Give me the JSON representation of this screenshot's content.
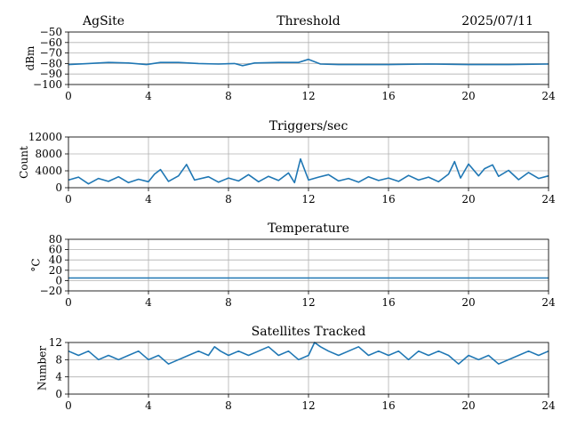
{
  "header": {
    "site": "AgSite",
    "date": "2025/07/11"
  },
  "colors": {
    "series": "#1f77b4",
    "grid": "#b0b0b0"
  },
  "chart_data": [
    {
      "type": "line",
      "title": "Threshold",
      "ylabel": "dBm",
      "xlabel": "",
      "xlim": [
        0,
        24
      ],
      "ylim": [
        -100,
        -50
      ],
      "xticks": [
        0,
        4,
        8,
        12,
        16,
        20,
        24
      ],
      "yticks": [
        -100,
        -90,
        -80,
        -70,
        -60,
        -50
      ],
      "ytick_labels": [
        "−100",
        "−90",
        "−80",
        "−70",
        "−60",
        "−50"
      ],
      "grid": true,
      "x": [
        0,
        1,
        2,
        3,
        3.9,
        4.6,
        5.5,
        6.5,
        7.5,
        8.3,
        8.7,
        9.3,
        10.5,
        11.5,
        12.0,
        12.6,
        13.5,
        16,
        18,
        20,
        22,
        24
      ],
      "y": [
        -81,
        -80,
        -79,
        -79.5,
        -81,
        -79,
        -79,
        -80,
        -80.5,
        -80,
        -82,
        -79.5,
        -79,
        -79,
        -76,
        -80.5,
        -81,
        -81,
        -80.5,
        -81,
        -81,
        -80.5
      ]
    },
    {
      "type": "line",
      "title": "Triggers/sec",
      "ylabel": "Count",
      "xlabel": "",
      "xlim": [
        0,
        24
      ],
      "ylim": [
        0,
        12000
      ],
      "xticks": [
        0,
        4,
        8,
        12,
        16,
        20,
        24
      ],
      "yticks": [
        0,
        4000,
        8000,
        12000
      ],
      "ytick_labels": [
        "0",
        "4000",
        "8000",
        "12000"
      ],
      "grid": true,
      "x": [
        0,
        0.5,
        1,
        1.5,
        2,
        2.5,
        3,
        3.5,
        4,
        4.3,
        4.6,
        5,
        5.5,
        5.9,
        6.3,
        7,
        7.5,
        8,
        8.5,
        9,
        9.5,
        10,
        10.5,
        11,
        11.3,
        11.6,
        12,
        12.5,
        13,
        13.5,
        14,
        14.5,
        15,
        15.5,
        16,
        16.5,
        17,
        17.5,
        18,
        18.5,
        19,
        19.3,
        19.6,
        20,
        20.5,
        20.8,
        21.2,
        21.5,
        22,
        22.5,
        23,
        23.5,
        24
      ],
      "y": [
        1800,
        2500,
        900,
        2200,
        1500,
        2600,
        1200,
        2000,
        1400,
        3200,
        4300,
        1500,
        2800,
        5500,
        1800,
        2600,
        1300,
        2300,
        1600,
        3100,
        1400,
        2700,
        1700,
        3500,
        1200,
        6800,
        1800,
        2500,
        3100,
        1600,
        2200,
        1300,
        2600,
        1700,
        2300,
        1500,
        2900,
        1800,
        2500,
        1400,
        3200,
        6200,
        2300,
        5600,
        2800,
        4500,
        5400,
        2700,
        4100,
        1900,
        3600,
        2200,
        2800
      ]
    },
    {
      "type": "line",
      "title": "Temperature",
      "ylabel": "°C",
      "xlabel": "",
      "xlim": [
        0,
        24
      ],
      "ylim": [
        -20,
        80
      ],
      "xticks": [
        0,
        4,
        8,
        12,
        16,
        20,
        24
      ],
      "yticks": [
        -20,
        0,
        20,
        40,
        60,
        80
      ],
      "ytick_labels": [
        "−20",
        "0",
        "20",
        "40",
        "60",
        "80"
      ],
      "grid": true,
      "x": [
        0,
        24
      ],
      "y": [
        5,
        5
      ]
    },
    {
      "type": "line",
      "title": "Satellites Tracked",
      "ylabel": "Number",
      "xlabel": "",
      "xlim": [
        0,
        24
      ],
      "ylim": [
        0,
        12
      ],
      "xticks": [
        0,
        4,
        8,
        12,
        16,
        20,
        24
      ],
      "yticks": [
        0,
        4,
        8,
        12
      ],
      "ytick_labels": [
        "0",
        "4",
        "8",
        "12"
      ],
      "grid": true,
      "x": [
        0,
        0.5,
        1,
        1.5,
        2,
        2.5,
        3,
        3.5,
        4,
        4.5,
        5,
        5.5,
        6,
        6.5,
        7,
        7.3,
        7.6,
        8,
        8.5,
        9,
        9.5,
        10,
        10.5,
        11,
        11.5,
        12,
        12.3,
        12.6,
        13,
        13.5,
        14,
        14.5,
        15,
        15.5,
        16,
        16.5,
        17,
        17.5,
        18,
        18.5,
        19,
        19.5,
        20,
        20.5,
        21,
        21.5,
        22,
        22.5,
        23,
        23.5,
        24
      ],
      "y": [
        10,
        9,
        10,
        8,
        9,
        8,
        9,
        10,
        8,
        9,
        7,
        8,
        9,
        10,
        9,
        11,
        10,
        9,
        10,
        9,
        10,
        11,
        9,
        10,
        8,
        9,
        12,
        11,
        10,
        9,
        10,
        11,
        9,
        10,
        9,
        10,
        8,
        10,
        9,
        10,
        9,
        7,
        9,
        8,
        9,
        7,
        8,
        9,
        10,
        9,
        10
      ]
    }
  ]
}
